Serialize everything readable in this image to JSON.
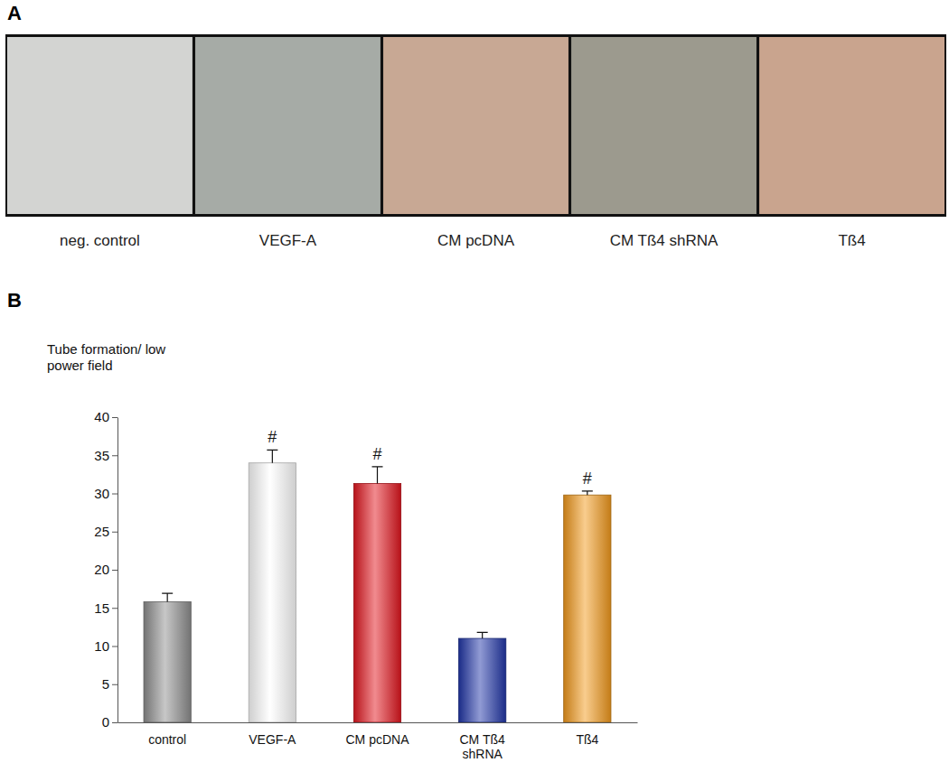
{
  "figure": {
    "panel_labels": [
      "A",
      "B"
    ],
    "image_labels": [
      "neg. control",
      "VEGF-A",
      "CM pcDNA",
      "CM Tß4 shRNA",
      "Tß4"
    ]
  },
  "chart_data": {
    "type": "bar",
    "y_label": "Tube formation/ low power field",
    "categories": [
      "control",
      "VEGF-A",
      "CM pcDNA",
      "CM Tß4 shRNA",
      "Tß4"
    ],
    "values": [
      15.8,
      34,
      31.3,
      11,
      29.8
    ],
    "errors": [
      1.1,
      1.7,
      2.2,
      0.8,
      0.5
    ],
    "annotations": [
      null,
      "#",
      "#",
      null,
      "#"
    ],
    "colors": [
      "#8f8f8f",
      "#ffffff",
      "#e3161f",
      "#2237a8",
      "#f39a1c"
    ],
    "ylim": [
      0,
      40
    ],
    "yticks": [
      0,
      5,
      10,
      15,
      20,
      25,
      30,
      35,
      40
    ],
    "grid": false
  }
}
